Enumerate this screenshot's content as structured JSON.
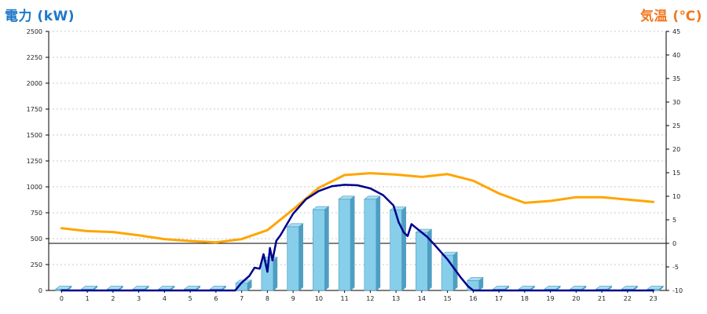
{
  "chart_data": {
    "type": "bar+line",
    "y_left": {
      "title": "電力 (kW)",
      "range": [
        0,
        2500
      ],
      "ticks": [
        0,
        250,
        500,
        750,
        1000,
        1250,
        1500,
        1750,
        2000,
        2250,
        2500
      ],
      "color": "#1e78c8"
    },
    "y_right": {
      "title": "気温 (℃)",
      "range": [
        -10,
        45
      ],
      "ticks": [
        -10,
        -5,
        0,
        5,
        10,
        15,
        20,
        25,
        30,
        35,
        40,
        45
      ],
      "color": "#f07820"
    },
    "x": {
      "categories": [
        "0",
        "1",
        "2",
        "3",
        "4",
        "5",
        "6",
        "7",
        "8",
        "9",
        "10",
        "11",
        "12",
        "13",
        "14",
        "15",
        "16",
        "17",
        "18",
        "19",
        "20",
        "21",
        "22",
        "23"
      ]
    },
    "grid": true,
    "bars": {
      "axis": "left",
      "color": "#87ceeb",
      "values": [
        12,
        12,
        12,
        12,
        12,
        12,
        12,
        70,
        290,
        615,
        780,
        880,
        880,
        775,
        560,
        340,
        95,
        12,
        12,
        12,
        12,
        12,
        12,
        12
      ]
    },
    "temperature_line": {
      "axis": "right",
      "color": "#ffa500",
      "points": [
        [
          0,
          3.2
        ],
        [
          1,
          2.6
        ],
        [
          2,
          2.4
        ],
        [
          3,
          1.7
        ],
        [
          4,
          0.9
        ],
        [
          5,
          0.5
        ],
        [
          6,
          0.2
        ],
        [
          7,
          0.9
        ],
        [
          8,
          2.8
        ],
        [
          9,
          7.2
        ],
        [
          10,
          11.8
        ],
        [
          11,
          14.5
        ],
        [
          12,
          14.9
        ],
        [
          13,
          14.6
        ],
        [
          14,
          14.1
        ],
        [
          15,
          14.7
        ],
        [
          16,
          13.3
        ],
        [
          17,
          10.6
        ],
        [
          18,
          8.6
        ],
        [
          19,
          9
        ],
        [
          20,
          9.8
        ],
        [
          21,
          9.8
        ],
        [
          22,
          9.3
        ],
        [
          23,
          8.8
        ]
      ]
    },
    "power_line": {
      "axis": "left",
      "color": "#00008b",
      "points": [
        [
          0,
          0
        ],
        [
          1,
          0
        ],
        [
          2,
          0
        ],
        [
          3,
          0
        ],
        [
          4,
          0
        ],
        [
          5,
          0
        ],
        [
          6,
          0
        ],
        [
          6.75,
          0
        ],
        [
          7,
          75
        ],
        [
          7.3,
          140
        ],
        [
          7.5,
          220
        ],
        [
          7.7,
          210
        ],
        [
          7.85,
          350
        ],
        [
          8,
          180
        ],
        [
          8.1,
          410
        ],
        [
          8.2,
          290
        ],
        [
          8.35,
          480
        ],
        [
          8.5,
          530
        ],
        [
          9,
          740
        ],
        [
          9.5,
          880
        ],
        [
          10,
          960
        ],
        [
          10.5,
          1005
        ],
        [
          11,
          1020
        ],
        [
          11.5,
          1015
        ],
        [
          12,
          985
        ],
        [
          12.5,
          920
        ],
        [
          12.9,
          820
        ],
        [
          13.1,
          660
        ],
        [
          13.3,
          560
        ],
        [
          13.45,
          525
        ],
        [
          13.6,
          640
        ],
        [
          13.8,
          600
        ],
        [
          14,
          560
        ],
        [
          14.2,
          520
        ],
        [
          14.5,
          440
        ],
        [
          15,
          300
        ],
        [
          15.5,
          130
        ],
        [
          15.8,
          40
        ],
        [
          16,
          0
        ],
        [
          17,
          0
        ],
        [
          18,
          0
        ],
        [
          19,
          0
        ],
        [
          20,
          0
        ],
        [
          21,
          0
        ],
        [
          22,
          0
        ],
        [
          23,
          0
        ]
      ]
    }
  }
}
